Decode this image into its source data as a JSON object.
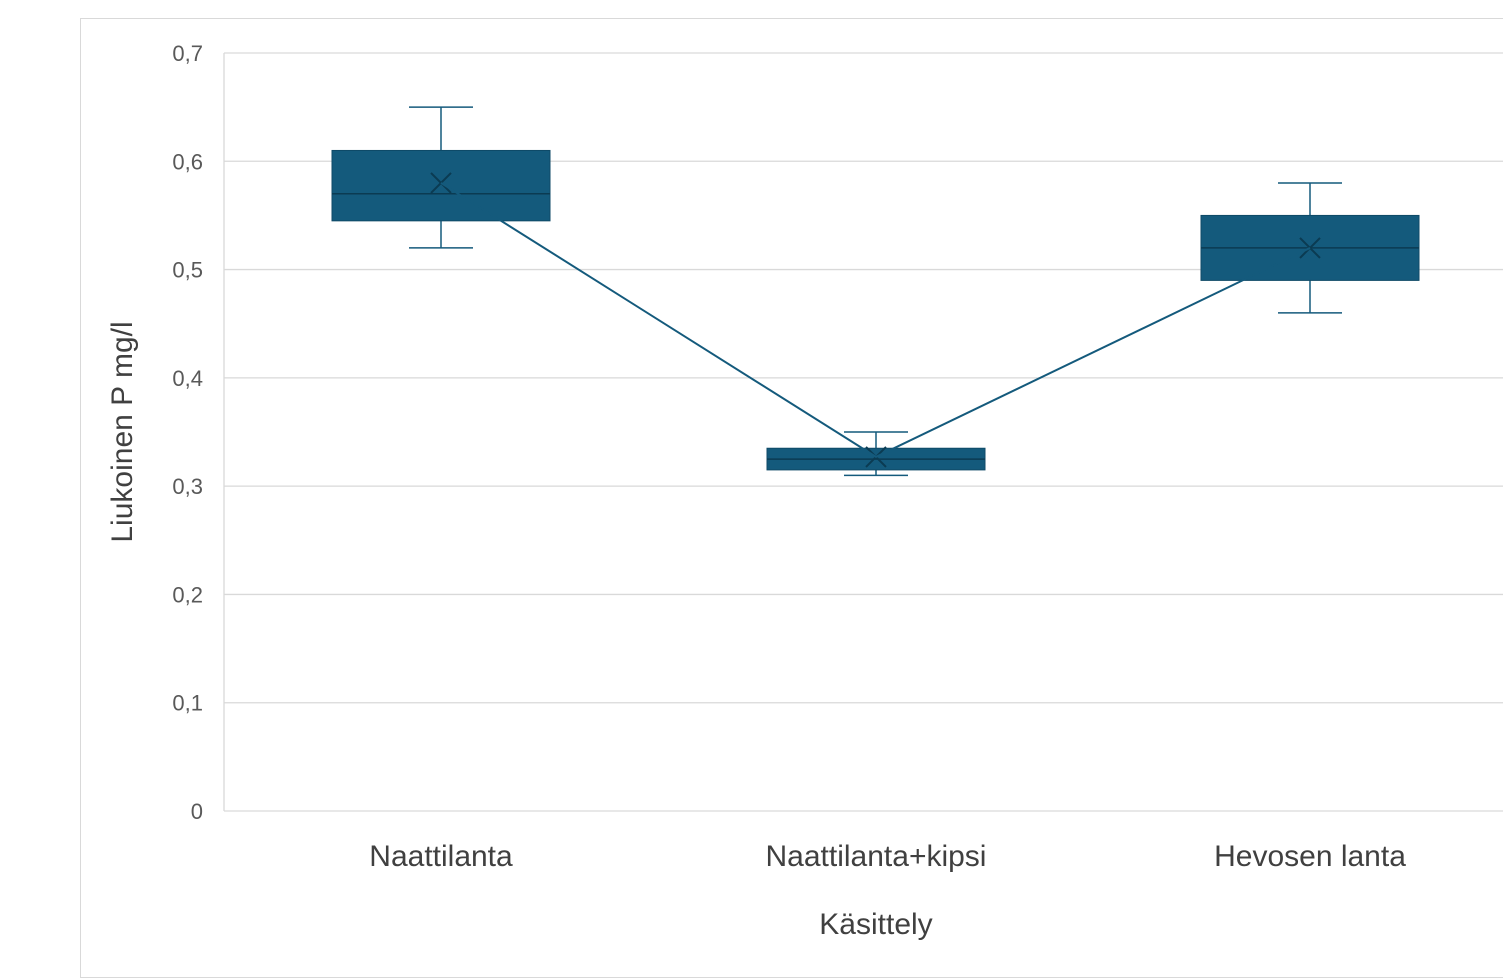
{
  "chart_data": {
    "type": "box",
    "xlabel": "Käsittely",
    "ylabel": "Liukoinen P mg/l",
    "ylim": [
      0,
      0.7
    ],
    "y_ticks": [
      0,
      0.1,
      0.2,
      0.3,
      0.4,
      0.5,
      0.6,
      0.7
    ],
    "y_tick_labels": [
      "0",
      "0,1",
      "0,2",
      "0,3",
      "0,4",
      "0,5",
      "0,6",
      "0,7"
    ],
    "grid": true,
    "box_color": "#145a7c",
    "line_color": "#145a7c",
    "categories": [
      "Naattilanta",
      "Naattilanta+kipsi",
      "Hevosen lanta"
    ],
    "boxes": [
      {
        "category": "Naattilanta",
        "min": 0.52,
        "q1": 0.545,
        "median": 0.57,
        "q3": 0.61,
        "max": 0.65,
        "mean": 0.58
      },
      {
        "category": "Naattilanta+kipsi",
        "min": 0.31,
        "q1": 0.315,
        "median": 0.325,
        "q3": 0.335,
        "max": 0.35,
        "mean": 0.327
      },
      {
        "category": "Hevosen lanta",
        "min": 0.46,
        "q1": 0.49,
        "median": 0.52,
        "q3": 0.55,
        "max": 0.58,
        "mean": 0.52
      }
    ],
    "mean_line": true
  }
}
